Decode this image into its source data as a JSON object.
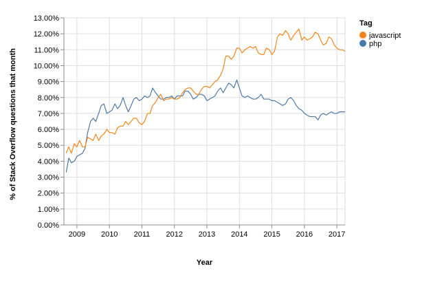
{
  "chart_data": {
    "type": "line",
    "xlabel": "Year",
    "ylabel": "% of Stack Overflow questions that month",
    "xlim": [
      2008.6,
      2017.25
    ],
    "ylim": [
      0,
      13
    ],
    "x_ticks": [
      2009,
      2010,
      2011,
      2012,
      2013,
      2014,
      2015,
      2016,
      2017
    ],
    "x_tick_labels": [
      "2009",
      "2010",
      "2011",
      "2012",
      "2013",
      "2014",
      "2015",
      "2016",
      "2017"
    ],
    "y_ticks": [
      0,
      1,
      2,
      3,
      4,
      5,
      6,
      7,
      8,
      9,
      10,
      11,
      12,
      13
    ],
    "y_tick_labels": [
      "0.00%",
      "1.00%",
      "2.00%",
      "3.00%",
      "4.00%",
      "5.00%",
      "6.00%",
      "7.00%",
      "8.00%",
      "9.00%",
      "10.00%",
      "11.00%",
      "12.00%",
      "13.00%"
    ],
    "grid": true,
    "legend": {
      "title": "Tag",
      "position": "top-right",
      "entries": [
        "javascript",
        "php"
      ]
    },
    "series": [
      {
        "name": "javascript",
        "color": "#f58518",
        "x": [
          2008.67,
          2008.75,
          2008.83,
          2008.92,
          2009.0,
          2009.08,
          2009.17,
          2009.25,
          2009.33,
          2009.42,
          2009.5,
          2009.58,
          2009.67,
          2009.75,
          2009.83,
          2009.92,
          2010.0,
          2010.08,
          2010.17,
          2010.25,
          2010.33,
          2010.42,
          2010.5,
          2010.58,
          2010.67,
          2010.75,
          2010.83,
          2010.92,
          2011.0,
          2011.08,
          2011.17,
          2011.25,
          2011.33,
          2011.42,
          2011.5,
          2011.58,
          2011.67,
          2011.75,
          2011.83,
          2011.92,
          2012.0,
          2012.08,
          2012.17,
          2012.25,
          2012.33,
          2012.42,
          2012.5,
          2012.58,
          2012.67,
          2012.75,
          2012.83,
          2012.92,
          2013.0,
          2013.08,
          2013.17,
          2013.25,
          2013.33,
          2013.42,
          2013.5,
          2013.58,
          2013.67,
          2013.75,
          2013.83,
          2013.92,
          2014.0,
          2014.08,
          2014.17,
          2014.25,
          2014.33,
          2014.42,
          2014.5,
          2014.58,
          2014.67,
          2014.75,
          2014.83,
          2014.92,
          2015.0,
          2015.08,
          2015.17,
          2015.25,
          2015.33,
          2015.42,
          2015.5,
          2015.58,
          2015.67,
          2015.75,
          2015.83,
          2015.92,
          2016.0,
          2016.08,
          2016.17,
          2016.25,
          2016.33,
          2016.42,
          2016.5,
          2016.58,
          2016.67,
          2016.75,
          2016.83,
          2016.92,
          2017.0,
          2017.08,
          2017.17,
          2017.25
        ],
        "values": [
          4.5,
          4.9,
          4.5,
          5.1,
          4.9,
          5.3,
          4.9,
          4.9,
          5.5,
          5.4,
          5.3,
          5.7,
          5.3,
          5.6,
          5.7,
          6.0,
          5.8,
          5.8,
          5.7,
          6.1,
          6.2,
          6.2,
          6.5,
          6.3,
          6.5,
          6.7,
          6.7,
          6.4,
          6.3,
          6.5,
          7.0,
          7.0,
          7.5,
          7.7,
          8.0,
          8.2,
          7.8,
          7.9,
          7.9,
          8.0,
          7.9,
          7.9,
          8.0,
          8.3,
          8.5,
          8.6,
          8.6,
          8.4,
          8.2,
          8.2,
          8.5,
          8.7,
          8.7,
          8.6,
          8.8,
          9.0,
          9.1,
          9.4,
          9.8,
          10.6,
          10.6,
          10.4,
          10.6,
          11.1,
          11.1,
          10.8,
          11.0,
          11.1,
          11.2,
          11.1,
          11.2,
          10.8,
          10.7,
          10.7,
          11.1,
          11.0,
          10.7,
          10.9,
          11.8,
          12.0,
          11.9,
          12.2,
          12.0,
          11.6,
          11.9,
          12.1,
          12.3,
          11.6,
          11.8,
          11.6,
          11.7,
          11.8,
          12.1,
          12.0,
          11.6,
          11.3,
          11.4,
          11.8,
          11.7,
          11.3,
          11.1,
          11.0,
          11.0,
          10.9
        ]
      },
      {
        "name": "php",
        "color": "#4c78a8",
        "x": [
          2008.67,
          2008.75,
          2008.83,
          2008.92,
          2009.0,
          2009.08,
          2009.17,
          2009.25,
          2009.33,
          2009.42,
          2009.5,
          2009.58,
          2009.67,
          2009.75,
          2009.83,
          2009.92,
          2010.0,
          2010.08,
          2010.17,
          2010.25,
          2010.33,
          2010.42,
          2010.5,
          2010.58,
          2010.67,
          2010.75,
          2010.83,
          2010.92,
          2011.0,
          2011.08,
          2011.17,
          2011.25,
          2011.33,
          2011.42,
          2011.5,
          2011.58,
          2011.67,
          2011.75,
          2011.83,
          2011.92,
          2012.0,
          2012.08,
          2012.17,
          2012.25,
          2012.33,
          2012.42,
          2012.5,
          2012.58,
          2012.67,
          2012.75,
          2012.83,
          2012.92,
          2013.0,
          2013.08,
          2013.17,
          2013.25,
          2013.33,
          2013.42,
          2013.5,
          2013.58,
          2013.67,
          2013.75,
          2013.83,
          2013.92,
          2014.0,
          2014.08,
          2014.17,
          2014.25,
          2014.33,
          2014.42,
          2014.5,
          2014.58,
          2014.67,
          2014.75,
          2014.83,
          2014.92,
          2015.0,
          2015.08,
          2015.17,
          2015.25,
          2015.33,
          2015.42,
          2015.5,
          2015.58,
          2015.67,
          2015.75,
          2015.83,
          2015.92,
          2016.0,
          2016.08,
          2016.17,
          2016.25,
          2016.33,
          2016.42,
          2016.5,
          2016.58,
          2016.67,
          2016.75,
          2016.83,
          2016.92,
          2017.0,
          2017.08,
          2017.17,
          2017.25
        ],
        "values": [
          3.3,
          4.2,
          3.9,
          4.0,
          4.3,
          4.4,
          4.5,
          4.8,
          5.8,
          6.5,
          6.7,
          6.5,
          7.0,
          7.5,
          7.6,
          7.0,
          7.1,
          7.2,
          7.6,
          7.3,
          7.5,
          8.0,
          7.5,
          7.1,
          7.5,
          7.9,
          8.0,
          7.8,
          7.9,
          8.1,
          8.0,
          8.1,
          8.6,
          8.3,
          8.1,
          7.9,
          7.9,
          8.0,
          8.0,
          8.1,
          7.9,
          8.1,
          8.1,
          8.1,
          8.4,
          8.4,
          8.2,
          7.9,
          8.0,
          8.2,
          8.2,
          8.1,
          7.8,
          7.9,
          8.0,
          8.1,
          8.4,
          8.6,
          8.3,
          8.6,
          8.9,
          8.8,
          8.6,
          9.1,
          8.6,
          8.1,
          8.0,
          8.1,
          8.0,
          7.9,
          7.9,
          8.0,
          8.2,
          7.9,
          7.9,
          7.9,
          7.8,
          7.8,
          7.7,
          7.6,
          7.5,
          7.6,
          7.9,
          8.0,
          7.8,
          7.5,
          7.3,
          7.2,
          7.0,
          6.9,
          6.8,
          6.8,
          6.8,
          6.6,
          6.9,
          7.0,
          6.9,
          7.0,
          7.1,
          7.0,
          7.0,
          7.1,
          7.1,
          7.1
        ]
      }
    ]
  }
}
